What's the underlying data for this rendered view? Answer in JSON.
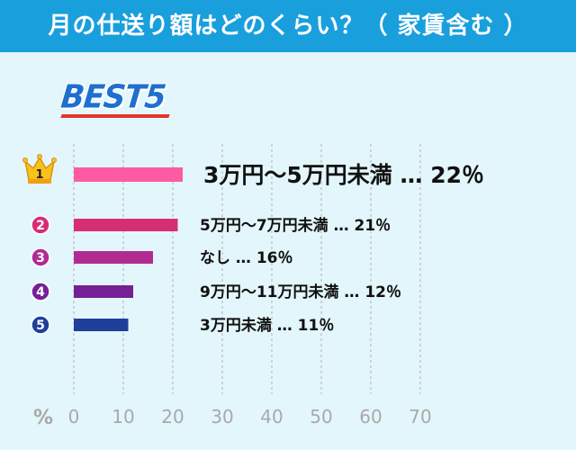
{
  "header": {
    "title": "月の仕送り額はどのくらい？（ 家賃含む ）"
  },
  "badge": {
    "title": "BEST5"
  },
  "chart_data": {
    "type": "bar",
    "orientation": "horizontal",
    "unit": "%",
    "xlim": [
      0,
      70
    ],
    "xticks": [
      0,
      10,
      20,
      30,
      40,
      50,
      60,
      70
    ],
    "grid": "vertical-dashed",
    "items": [
      {
        "rank": "1",
        "category": "3万円～5万円未満",
        "value": 22,
        "label": "3万円～5万円未満 … 22％",
        "color": "#ff5ba3"
      },
      {
        "rank": "2",
        "category": "5万円～7万円未満",
        "value": 21,
        "label": "5万円～7万円未満 … 21％",
        "color": "#d62e74"
      },
      {
        "rank": "3",
        "category": "なし",
        "value": 16,
        "label": "なし … 16％",
        "color": "#b02c93"
      },
      {
        "rank": "4",
        "category": "9万円～11万円未満",
        "value": 12,
        "label": "9万円～11万円未満 … 12％",
        "color": "#752095"
      },
      {
        "rank": "5",
        "category": "3万円未満",
        "value": 11,
        "label": "3万円未満 … 11％",
        "color": "#1f3f9c"
      }
    ]
  }
}
